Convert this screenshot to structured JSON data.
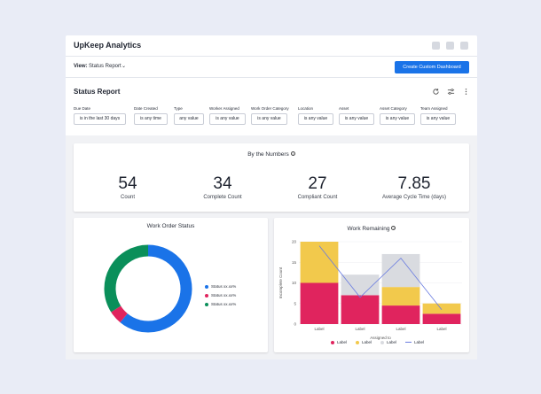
{
  "app": {
    "title": "UpKeep Analytics"
  },
  "viewbar": {
    "label": "View:",
    "value": "Status Report",
    "create_label": "Create Custom Dashboard"
  },
  "report": {
    "title": "Status Report"
  },
  "filters": [
    {
      "label": "Due Date",
      "value": "is in the last 30 days"
    },
    {
      "label": "Date Created",
      "value": "is any time"
    },
    {
      "label": "Type",
      "value": "any value"
    },
    {
      "label": "Worker Assigned",
      "value": "is any value"
    },
    {
      "label": "Work Order Category",
      "value": "is any value"
    },
    {
      "label": "Location",
      "value": "is any value"
    },
    {
      "label": "Asset",
      "value": "is any value"
    },
    {
      "label": "Asset Category",
      "value": "is any value"
    },
    {
      "label": "Team Assigned",
      "value": "is any value"
    }
  ],
  "numbers": {
    "title": "By the Numbers",
    "stats": [
      {
        "value": "54",
        "label": "Count"
      },
      {
        "value": "34",
        "label": "Complete Count"
      },
      {
        "value": "27",
        "label": "Compliant Count"
      },
      {
        "value": "7.85",
        "label": "Average Cycle Time (days)"
      }
    ]
  },
  "work_order_status": {
    "title": "Work Order Status",
    "legend": [
      {
        "text": "Status   xx.xx%",
        "color": "#1a73e8"
      },
      {
        "text": "Status   xx.xx%",
        "color": "#e0245e"
      },
      {
        "text": "Status   xx.xx%",
        "color": "#0a8f5a"
      }
    ]
  },
  "work_remaining": {
    "title": "Work Remaining",
    "legend": [
      {
        "text": "Label",
        "color": "#e0245e",
        "kind": "dot"
      },
      {
        "text": "Label",
        "color": "#f2c94c",
        "kind": "dot"
      },
      {
        "text": "Label",
        "color": "#d9dbe0",
        "kind": "dot"
      },
      {
        "text": "Label",
        "color": "#6b7de0",
        "kind": "line"
      }
    ]
  },
  "chart_data": [
    {
      "type": "pie",
      "title": "Work Order Status",
      "donut": true,
      "slices": [
        {
          "name": "Status",
          "value": 0.61,
          "color": "#1a73e8"
        },
        {
          "name": "Status",
          "value": 0.05,
          "color": "#e0245e"
        },
        {
          "name": "Status",
          "value": 0.34,
          "color": "#0a8f5a"
        }
      ]
    },
    {
      "type": "bar",
      "stacked": true,
      "title": "Work Remaining",
      "xlabel": "Assigned to",
      "ylabel": "Incomplete Count",
      "ylim": [
        0,
        20
      ],
      "yticks": [
        0,
        5,
        10,
        15,
        20
      ],
      "categories": [
        "Label",
        "Label",
        "Label",
        "Label"
      ],
      "series": [
        {
          "values": [
            10,
            7,
            4.5,
            2.5
          ],
          "color": "#e0245e"
        },
        {
          "values": [
            10,
            0,
            4.5,
            2.5
          ],
          "color": "#f2c94c"
        },
        {
          "values": [
            0,
            5,
            8,
            0
          ],
          "color": "#d9dbe0"
        }
      ],
      "line": {
        "values": [
          19,
          6.5,
          16,
          3.5
        ],
        "color": "#6b7de0"
      }
    }
  ]
}
